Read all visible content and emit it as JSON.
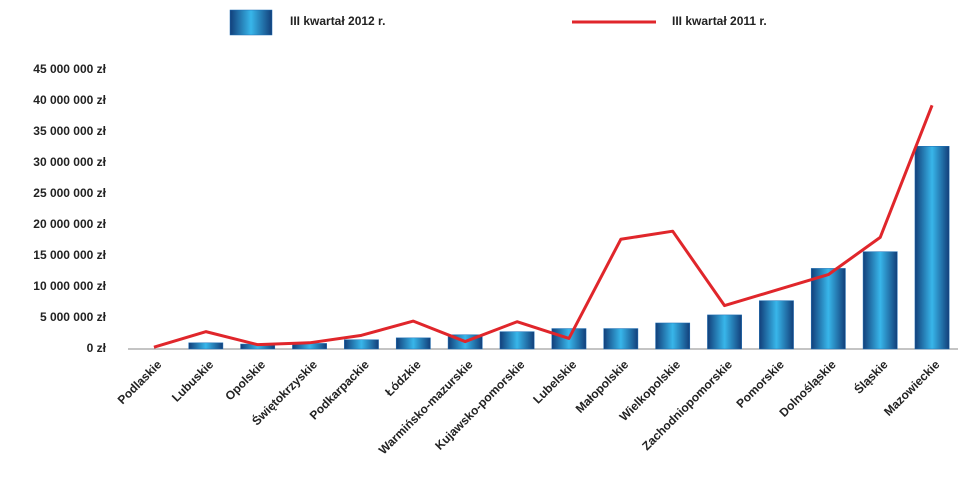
{
  "chart_data": {
    "type": "bar",
    "categories": [
      "Podlaskie",
      "Lubuskie",
      "Opolskie",
      "Świętokrzyskie",
      "Podkarpackie",
      "Łódzkie",
      "Warmińsko-mazurskie",
      "Kujawsko-pomorskie",
      "Lubelskie",
      "Małopolskie",
      "Wielkopolskie",
      "Zachodniopomorskie",
      "Pomorskie",
      "Dolnośląskie",
      "Śląskie",
      "Mazowieckie"
    ],
    "series": [
      {
        "name": "III kwartał 2012 r.",
        "type": "bar",
        "color": "#1f6fb5",
        "values": [
          0,
          1000000,
          800000,
          900000,
          1500000,
          1800000,
          2300000,
          2800000,
          3300000,
          3300000,
          4200000,
          5500000,
          7800000,
          13000000,
          15700000,
          32700000
        ]
      },
      {
        "name": "III kwartał 2011 r.",
        "type": "line",
        "color": "#e0262b",
        "values": [
          300000,
          2800000,
          700000,
          1000000,
          2200000,
          4500000,
          1200000,
          4400000,
          1700000,
          17700000,
          19000000,
          7000000,
          9500000,
          12000000,
          18000000,
          39300000
        ]
      }
    ],
    "ylim": [
      0,
      45000000
    ],
    "yticks": [
      {
        "value": 0,
        "label": "0 zł"
      },
      {
        "value": 5000000,
        "label": "5 000 000 zł"
      },
      {
        "value": 10000000,
        "label": "10 000 000 zł"
      },
      {
        "value": 15000000,
        "label": "15 000 000 zł"
      },
      {
        "value": 20000000,
        "label": "20 000 000 zł"
      },
      {
        "value": 25000000,
        "label": "25 000 000 zł"
      },
      {
        "value": 30000000,
        "label": "30 000 000 zł"
      },
      {
        "value": 35000000,
        "label": "35 000 000 zł"
      },
      {
        "value": 40000000,
        "label": "40 000 000 zł"
      },
      {
        "value": 45000000,
        "label": "45 000 000 zł"
      }
    ],
    "grid": false,
    "legend": "top"
  }
}
